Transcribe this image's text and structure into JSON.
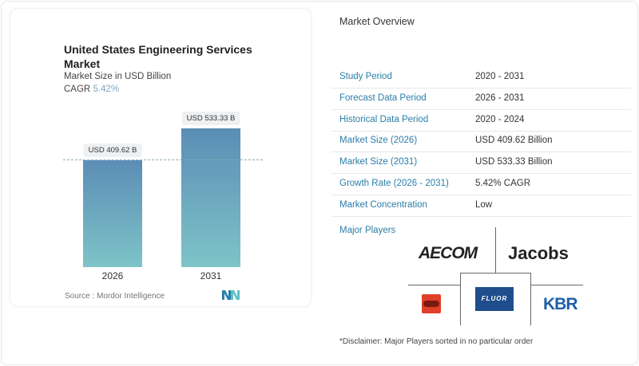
{
  "chart_data": {
    "type": "bar",
    "title": "United States Engineering Services Market",
    "subtitle": "Market Size in USD Billion",
    "cagr_label": "CAGR",
    "cagr_value": "5.42%",
    "categories": [
      "2026",
      "2031"
    ],
    "values": [
      409.62,
      533.33
    ],
    "data_labels": [
      "USD 409.62 B",
      "USD 533.33 B"
    ],
    "ylim": [
      0,
      533.33
    ],
    "grid": false,
    "bar_color_top": "#5b8db5",
    "bar_color_bottom": "#7ec4c8",
    "source": "Source :  Mordor Intelligence"
  },
  "overview": {
    "title": "Market Overview",
    "rows": [
      {
        "label": "Study Period",
        "value": "2020 - 2031"
      },
      {
        "label": "Forecast Data Period",
        "value": "2026 - 2031"
      },
      {
        "label": "Historical Data Period",
        "value": "2020 - 2024"
      },
      {
        "label": "Market Size (2026)",
        "value": "USD 409.62 Billion"
      },
      {
        "label": "Market Size (2031)",
        "value": "USD 533.33 Billion"
      },
      {
        "label": "Growth Rate (2026 - 2031)",
        "value": "5.42% CAGR"
      },
      {
        "label": "Market Concentration",
        "value": "Low"
      }
    ]
  },
  "players": {
    "title": "Major Players",
    "logos": [
      "AECOM",
      "Jacobs",
      "Bechtel",
      "FLUOR",
      "KBR"
    ],
    "disclaimer": "*Disclaimer: Major Players sorted in no particular order"
  },
  "colors": {
    "accent": "#2a7ea8",
    "fluor": "#1f4e8c",
    "bechtel": "#e0402a",
    "kbr": "#1d5fa8"
  }
}
